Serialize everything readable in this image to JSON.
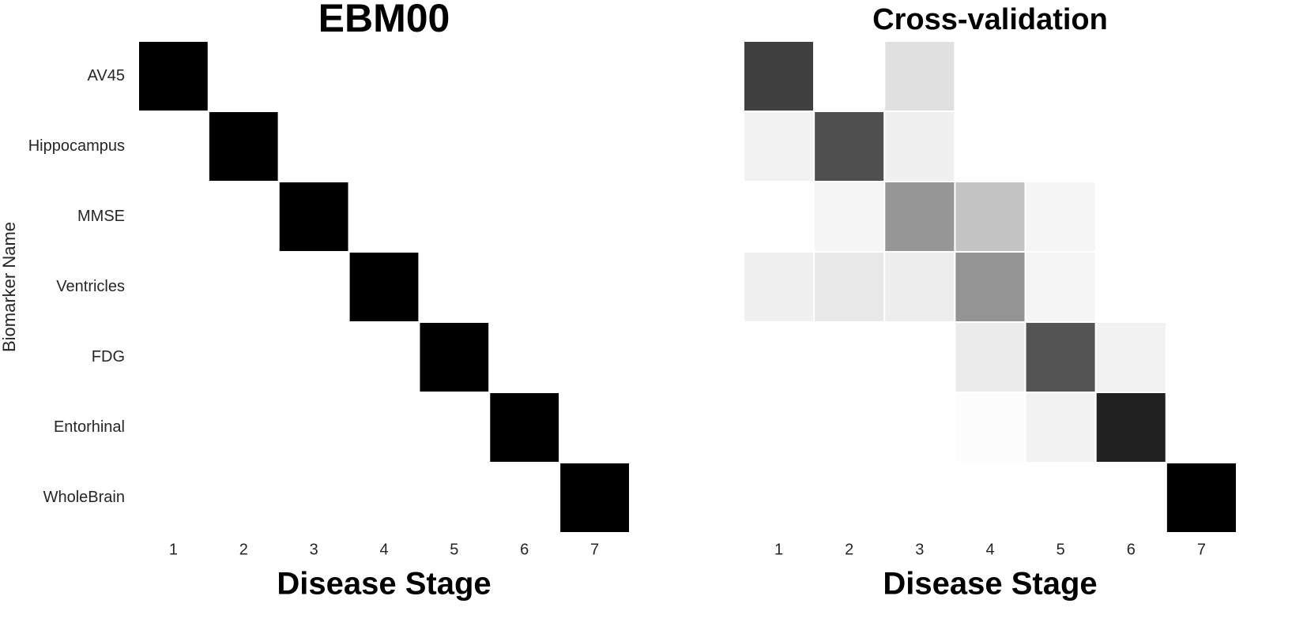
{
  "chart_data": [
    {
      "type": "heatmap",
      "title": "EBM00",
      "xlabel": "Disease Stage",
      "ylabel": "Biomarker Name",
      "x": [
        "1",
        "2",
        "3",
        "4",
        "5",
        "6",
        "7"
      ],
      "y": [
        "AV45",
        "Hippocampus",
        "MMSE",
        "Ventricles",
        "FDG",
        "Entorhinal",
        "WholeBrain"
      ],
      "colors": {
        "low": "#ffffff",
        "high": "#000000"
      },
      "values": [
        [
          1,
          0,
          0,
          0,
          0,
          0,
          0
        ],
        [
          0,
          1,
          0,
          0,
          0,
          0,
          0
        ],
        [
          0,
          0,
          1,
          0,
          0,
          0,
          0
        ],
        [
          0,
          0,
          0,
          1,
          0,
          0,
          0
        ],
        [
          0,
          0,
          0,
          0,
          1,
          0,
          0
        ],
        [
          0,
          0,
          0,
          0,
          0,
          1,
          0
        ],
        [
          0,
          0,
          0,
          0,
          0,
          0,
          1
        ]
      ]
    },
    {
      "type": "heatmap",
      "title": "Cross-validation",
      "xlabel": "Disease Stage",
      "x": [
        "1",
        "2",
        "3",
        "4",
        "5",
        "6",
        "7"
      ],
      "colors": {
        "low": "#ffffff",
        "high": "#000000"
      },
      "values": [
        [
          0.75,
          0,
          0.12,
          0,
          0,
          0,
          0
        ],
        [
          0.05,
          0.69,
          0.06,
          0,
          0,
          0,
          0
        ],
        [
          0,
          0.04,
          0.41,
          0.23,
          0.04,
          0,
          0
        ],
        [
          0.06,
          0.09,
          0.07,
          0.42,
          0.04,
          0,
          0
        ],
        [
          0,
          0,
          0,
          0.08,
          0.67,
          0.05,
          0
        ],
        [
          0,
          0,
          0,
          0.01,
          0.05,
          0.87,
          0
        ],
        [
          0,
          0,
          0,
          0,
          0,
          0,
          1
        ]
      ]
    }
  ]
}
